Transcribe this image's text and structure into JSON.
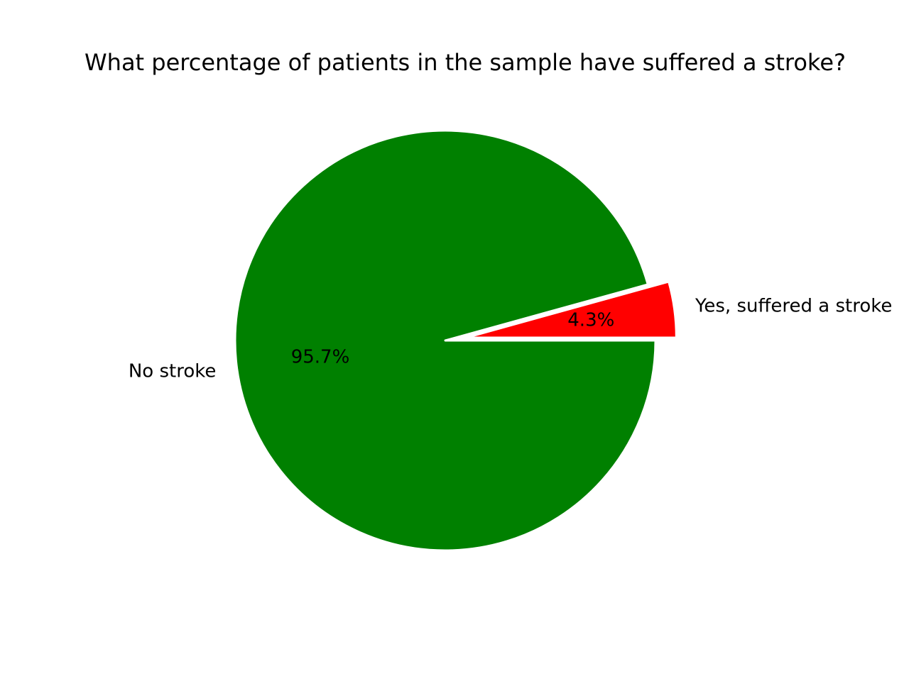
{
  "chart_data": {
    "type": "pie",
    "title": "What percentage of patients in the sample have suffered a stroke?",
    "slices": [
      {
        "label": "No stroke",
        "value": 95.7,
        "pct_label": "95.7%",
        "color": "#008000",
        "exploded": false
      },
      {
        "label": "Yes, suffered a stroke",
        "value": 4.3,
        "pct_label": "4.3%",
        "color": "#ff0000",
        "exploded": true
      }
    ],
    "start_angle": 0,
    "direction": "clockwise",
    "edge_color": "#ffffff",
    "legend": "none"
  }
}
